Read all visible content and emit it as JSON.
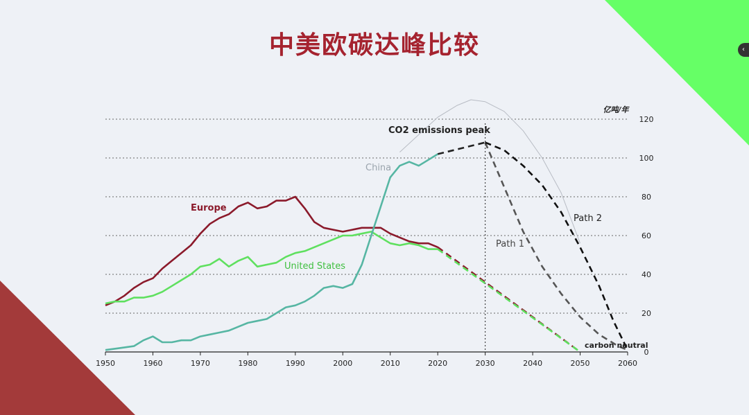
{
  "slide": {
    "title": "中美欧碳达峰比较",
    "colors": {
      "background": "#eef1f6",
      "title": "#a5232f",
      "corner_top_right": "#66ff66",
      "corner_bottom_left": "#a33a3a"
    }
  },
  "chart_data": {
    "type": "line",
    "title": "中美欧碳达峰比较",
    "y_unit_label": "亿吨/年",
    "xlim": [
      1950,
      2060
    ],
    "ylim": [
      0,
      120
    ],
    "x_ticks": [
      "1950",
      "1960",
      "1970",
      "1980",
      "1990",
      "2000",
      "2010",
      "2020",
      "2030",
      "2040",
      "2050",
      "2060"
    ],
    "y_ticks": [
      "0",
      "20",
      "40",
      "60",
      "80",
      "100",
      "120"
    ],
    "grid": "horizontal dotted",
    "annotations": {
      "peak": "CO2 emissions peak",
      "peak_year": 2030,
      "neutral": "carbon neutral",
      "path1": "Path 1",
      "path2": "Path 2"
    },
    "series": [
      {
        "name": "Europe",
        "color": "#8b1a2b",
        "x": [
          1950,
          1952,
          1954,
          1956,
          1958,
          1960,
          1962,
          1964,
          1966,
          1968,
          1970,
          1972,
          1974,
          1976,
          1978,
          1980,
          1982,
          1984,
          1986,
          1988,
          1990,
          1992,
          1994,
          1996,
          1998,
          2000,
          2002,
          2004,
          2006,
          2008,
          2010,
          2012,
          2014,
          2016,
          2018,
          2020
        ],
        "y": [
          24,
          26,
          29,
          33,
          36,
          38,
          43,
          47,
          51,
          55,
          61,
          66,
          69,
          71,
          75,
          77,
          74,
          75,
          78,
          78,
          80,
          74,
          67,
          64,
          63,
          62,
          63,
          64,
          64,
          64,
          61,
          59,
          57,
          56,
          56,
          54
        ]
      },
      {
        "name": "United States",
        "color": "#5fe05f",
        "x": [
          1950,
          1952,
          1954,
          1956,
          1958,
          1960,
          1962,
          1964,
          1966,
          1968,
          1970,
          1972,
          1974,
          1976,
          1978,
          1980,
          1982,
          1984,
          1986,
          1988,
          1990,
          1992,
          1994,
          1996,
          1998,
          2000,
          2002,
          2004,
          2006,
          2008,
          2010,
          2012,
          2014,
          2016,
          2018,
          2020
        ],
        "y": [
          25,
          26,
          26,
          28,
          28,
          29,
          31,
          34,
          37,
          40,
          44,
          45,
          48,
          44,
          47,
          49,
          44,
          45,
          46,
          49,
          51,
          52,
          54,
          56,
          58,
          60,
          60,
          61,
          62,
          59,
          56,
          55,
          56,
          55,
          53,
          53
        ]
      },
      {
        "name": "China",
        "color": "#56b6a3",
        "x": [
          1950,
          1953,
          1956,
          1958,
          1960,
          1962,
          1964,
          1966,
          1968,
          1970,
          1972,
          1974,
          1976,
          1978,
          1980,
          1982,
          1984,
          1986,
          1988,
          1990,
          1992,
          1994,
          1996,
          1998,
          2000,
          2002,
          2004,
          2006,
          2008,
          2010,
          2012,
          2014,
          2016,
          2018,
          2020
        ],
        "y": [
          1,
          2,
          3,
          6,
          8,
          5,
          5,
          6,
          6,
          8,
          9,
          10,
          11,
          13,
          15,
          16,
          17,
          20,
          23,
          24,
          26,
          29,
          33,
          34,
          33,
          35,
          45,
          60,
          75,
          90,
          96,
          98,
          96,
          99,
          102
        ]
      },
      {
        "name": "China peak projection",
        "color": "#222222",
        "dashed": true,
        "x": [
          2020,
          2025,
          2030
        ],
        "y": [
          102,
          105,
          108
        ]
      },
      {
        "name": "Path 1",
        "color": "#555555",
        "dashed": true,
        "x": [
          2030,
          2034,
          2038,
          2042,
          2046,
          2050,
          2054,
          2058,
          2060
        ],
        "y": [
          108,
          85,
          62,
          44,
          30,
          18,
          9,
          3,
          1
        ]
      },
      {
        "name": "Path 2",
        "color": "#111111",
        "dashed": true,
        "x": [
          2030,
          2034,
          2038,
          2042,
          2046,
          2050,
          2054,
          2057,
          2060
        ],
        "y": [
          108,
          104,
          96,
          86,
          72,
          54,
          34,
          16,
          1
        ]
      },
      {
        "name": "Europe path",
        "color": "#8b1a2b",
        "dashed": true,
        "x": [
          2020,
          2050
        ],
        "y": [
          54,
          0
        ]
      },
      {
        "name": "United States path",
        "color": "#5fe05f",
        "dashed": true,
        "x": [
          2020,
          2050
        ],
        "y": [
          53,
          0
        ]
      },
      {
        "name": "Path 2 envelope",
        "color": "#b8bcc4",
        "x": [
          2012,
          2016,
          2020,
          2024,
          2027,
          2030,
          2034,
          2038,
          2042,
          2046,
          2050
        ],
        "y": [
          103,
          112,
          121,
          127,
          130,
          129,
          124,
          114,
          100,
          82,
          56
        ]
      }
    ]
  }
}
